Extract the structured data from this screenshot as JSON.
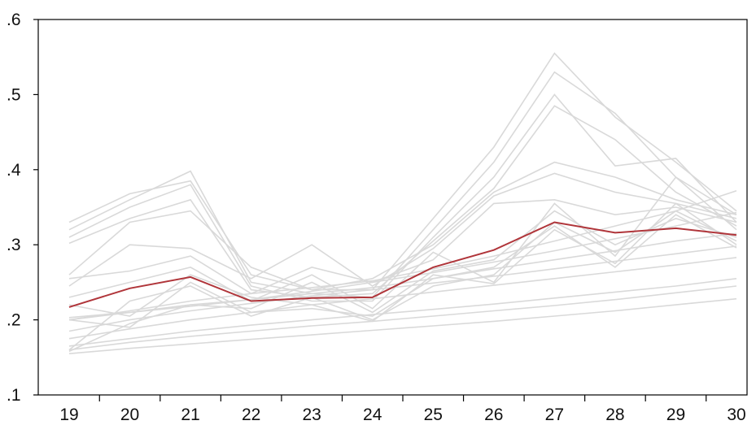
{
  "chart_data": {
    "type": "line",
    "title": "",
    "xlabel": "",
    "ylabel": "",
    "x": [
      "19",
      "20",
      "21",
      "22",
      "23",
      "24",
      "25",
      "26",
      "27",
      "28",
      "29",
      "30"
    ],
    "ylim": [
      0.1,
      0.6
    ],
    "y_ticks": [
      0.1,
      0.2,
      0.3,
      0.4,
      0.5,
      0.6
    ],
    "y_tick_labels": [
      ".1",
      ".2",
      ".3",
      ".4",
      ".5",
      ".6"
    ],
    "grid": false,
    "legend": "none",
    "colors": {
      "background_series": "#d9d9d9",
      "highlight_series": "#b0353a"
    },
    "highlight_series": {
      "values": [
        0.217,
        0.242,
        0.257,
        0.225,
        0.229,
        0.23,
        0.27,
        0.293,
        0.33,
        0.316,
        0.322,
        0.313
      ]
    },
    "background_series": [
      {
        "values": [
          0.33,
          0.368,
          0.385,
          0.26,
          0.24,
          0.24,
          0.335,
          0.43,
          0.555,
          0.47,
          0.41,
          0.345
        ]
      },
      {
        "values": [
          0.32,
          0.36,
          0.398,
          0.25,
          0.235,
          0.23,
          0.32,
          0.41,
          0.53,
          0.475,
          0.39,
          0.34
        ]
      },
      {
        "values": [
          0.31,
          0.35,
          0.38,
          0.245,
          0.225,
          0.225,
          0.31,
          0.39,
          0.5,
          0.405,
          0.415,
          0.33
        ]
      },
      {
        "values": [
          0.302,
          0.335,
          0.36,
          0.24,
          0.23,
          0.235,
          0.305,
          0.375,
          0.485,
          0.44,
          0.37,
          0.325
        ]
      },
      {
        "values": [
          0.26,
          0.33,
          0.345,
          0.27,
          0.24,
          0.255,
          0.3,
          0.37,
          0.41,
          0.39,
          0.36,
          0.34
        ]
      },
      {
        "values": [
          0.245,
          0.3,
          0.295,
          0.255,
          0.3,
          0.245,
          0.295,
          0.365,
          0.395,
          0.37,
          0.355,
          0.335
        ]
      },
      {
        "values": [
          0.255,
          0.265,
          0.285,
          0.235,
          0.27,
          0.25,
          0.28,
          0.355,
          0.36,
          0.34,
          0.35,
          0.33
        ]
      },
      {
        "values": [
          0.23,
          0.25,
          0.27,
          0.225,
          0.26,
          0.215,
          0.29,
          0.25,
          0.355,
          0.285,
          0.39,
          0.32
        ]
      },
      {
        "values": [
          0.22,
          0.205,
          0.26,
          0.23,
          0.22,
          0.198,
          0.26,
          0.248,
          0.32,
          0.275,
          0.355,
          0.3
        ]
      },
      {
        "values": [
          0.2,
          0.19,
          0.25,
          0.21,
          0.215,
          0.205,
          0.255,
          0.27,
          0.325,
          0.27,
          0.34,
          0.296
        ]
      },
      {
        "values": [
          0.16,
          0.225,
          0.245,
          0.205,
          0.23,
          0.2,
          0.245,
          0.26,
          0.33,
          0.29,
          0.345,
          0.305
        ]
      },
      {
        "values": [
          0.158,
          0.195,
          0.22,
          0.215,
          0.25,
          0.21,
          0.265,
          0.28,
          0.345,
          0.3,
          0.335,
          0.31
        ]
      },
      {
        "values": [
          0.203,
          0.21,
          0.218,
          0.227,
          0.238,
          0.25,
          0.263,
          0.277,
          0.292,
          0.308,
          0.325,
          0.343
        ]
      },
      {
        "values": [
          0.2,
          0.212,
          0.225,
          0.235,
          0.243,
          0.252,
          0.268,
          0.285,
          0.305,
          0.325,
          0.345,
          0.372
        ]
      },
      {
        "values": [
          0.2,
          0.21,
          0.22,
          0.227,
          0.235,
          0.243,
          0.255,
          0.268,
          0.28,
          0.292,
          0.305,
          0.315
        ]
      },
      {
        "values": [
          0.185,
          0.2,
          0.212,
          0.222,
          0.232,
          0.24,
          0.249,
          0.258,
          0.268,
          0.278,
          0.288,
          0.298
        ]
      },
      {
        "values": [
          0.175,
          0.188,
          0.2,
          0.21,
          0.22,
          0.228,
          0.237,
          0.246,
          0.255,
          0.264,
          0.273,
          0.283
        ]
      },
      {
        "values": [
          0.165,
          0.175,
          0.185,
          0.193,
          0.2,
          0.207,
          0.214,
          0.221,
          0.229,
          0.237,
          0.245,
          0.255
        ]
      },
      {
        "values": [
          0.16,
          0.17,
          0.178,
          0.185,
          0.192,
          0.198,
          0.205,
          0.212,
          0.219,
          0.227,
          0.236,
          0.245
        ]
      },
      {
        "values": [
          0.155,
          0.162,
          0.168,
          0.174,
          0.18,
          0.186,
          0.192,
          0.198,
          0.205,
          0.212,
          0.22,
          0.228
        ]
      }
    ]
  }
}
